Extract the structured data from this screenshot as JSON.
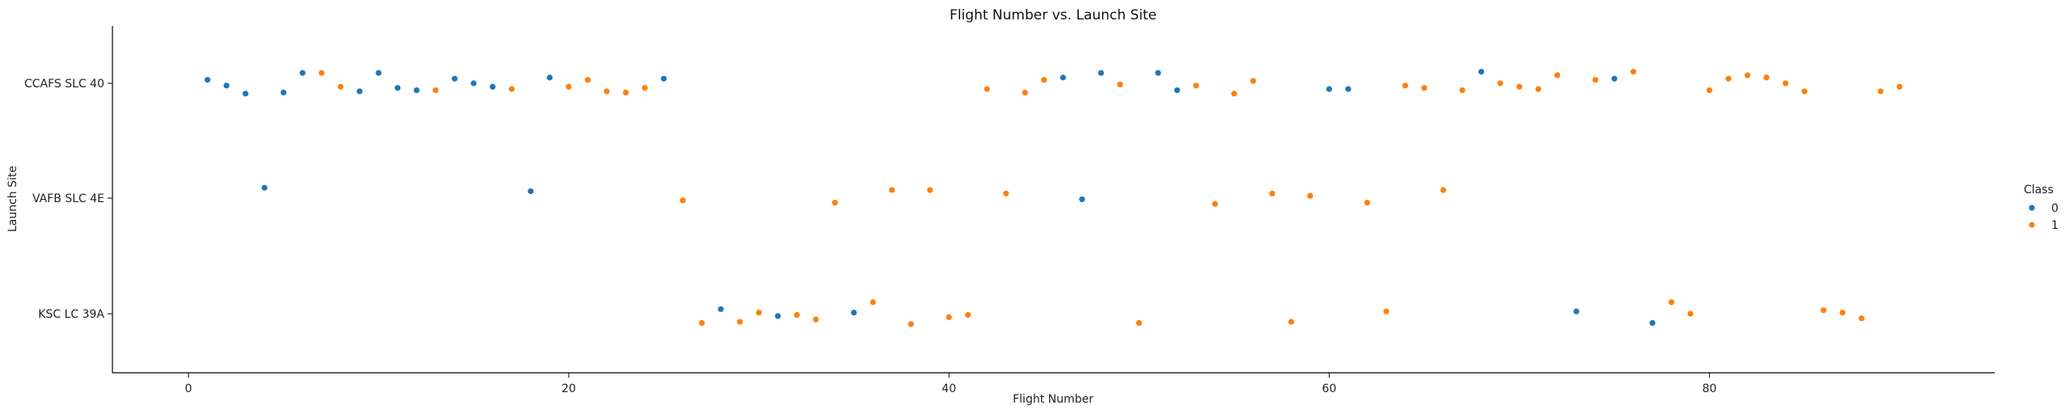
{
  "chart_data": {
    "type": "scatter",
    "title": "Flight Number vs. Launch Site",
    "xlabel": "Flight Number",
    "ylabel": "Launch Site",
    "xlim": [
      -4,
      95
    ],
    "x_ticks": [
      0,
      20,
      40,
      60,
      80
    ],
    "categories": [
      "CCAFS SLC 40",
      "VAFB SLC 4E",
      "KSC LC 39A"
    ],
    "grid": false,
    "legend": {
      "title": "Class",
      "placement": "right",
      "entries": [
        "0",
        "1"
      ]
    },
    "colors": {
      "0": "#1f77b4",
      "1": "#ff7f0e"
    },
    "series": [
      {
        "name": "0",
        "points": [
          {
            "x": 1,
            "site": "CCAFS SLC 40",
            "jitter": -0.03
          },
          {
            "x": 2,
            "site": "CCAFS SLC 40",
            "jitter": 0.02
          },
          {
            "x": 3,
            "site": "CCAFS SLC 40",
            "jitter": 0.09
          },
          {
            "x": 4,
            "site": "VAFB SLC 4E",
            "jitter": -0.09
          },
          {
            "x": 5,
            "site": "CCAFS SLC 40",
            "jitter": 0.08
          },
          {
            "x": 6,
            "site": "CCAFS SLC 40",
            "jitter": -0.09
          },
          {
            "x": 9,
            "site": "CCAFS SLC 40",
            "jitter": 0.07
          },
          {
            "x": 10,
            "site": "CCAFS SLC 40",
            "jitter": -0.09
          },
          {
            "x": 11,
            "site": "CCAFS SLC 40",
            "jitter": 0.04
          },
          {
            "x": 12,
            "site": "CCAFS SLC 40",
            "jitter": 0.06
          },
          {
            "x": 14,
            "site": "CCAFS SLC 40",
            "jitter": -0.04
          },
          {
            "x": 15,
            "site": "CCAFS SLC 40",
            "jitter": 0.0
          },
          {
            "x": 16,
            "site": "CCAFS SLC 40",
            "jitter": 0.03
          },
          {
            "x": 18,
            "site": "VAFB SLC 4E",
            "jitter": -0.06
          },
          {
            "x": 19,
            "site": "CCAFS SLC 40",
            "jitter": -0.05
          },
          {
            "x": 25,
            "site": "CCAFS SLC 40",
            "jitter": -0.04
          },
          {
            "x": 28,
            "site": "KSC LC 39A",
            "jitter": -0.04
          },
          {
            "x": 31,
            "site": "KSC LC 39A",
            "jitter": 0.02
          },
          {
            "x": 35,
            "site": "KSC LC 39A",
            "jitter": -0.01
          },
          {
            "x": 46,
            "site": "CCAFS SLC 40",
            "jitter": -0.05
          },
          {
            "x": 47,
            "site": "VAFB SLC 4E",
            "jitter": 0.01
          },
          {
            "x": 48,
            "site": "CCAFS SLC 40",
            "jitter": -0.09
          },
          {
            "x": 51,
            "site": "CCAFS SLC 40",
            "jitter": -0.09
          },
          {
            "x": 52,
            "site": "CCAFS SLC 40",
            "jitter": 0.06
          },
          {
            "x": 60,
            "site": "CCAFS SLC 40",
            "jitter": 0.05
          },
          {
            "x": 61,
            "site": "CCAFS SLC 40",
            "jitter": 0.05
          },
          {
            "x": 68,
            "site": "CCAFS SLC 40",
            "jitter": -0.1
          },
          {
            "x": 73,
            "site": "KSC LC 39A",
            "jitter": -0.02
          },
          {
            "x": 75,
            "site": "CCAFS SLC 40",
            "jitter": -0.04
          },
          {
            "x": 77,
            "site": "KSC LC 39A",
            "jitter": 0.08
          }
        ]
      },
      {
        "name": "1",
        "points": [
          {
            "x": 7,
            "site": "CCAFS SLC 40",
            "jitter": -0.09
          },
          {
            "x": 8,
            "site": "CCAFS SLC 40",
            "jitter": 0.03
          },
          {
            "x": 13,
            "site": "CCAFS SLC 40",
            "jitter": 0.06
          },
          {
            "x": 17,
            "site": "CCAFS SLC 40",
            "jitter": 0.05
          },
          {
            "x": 20,
            "site": "CCAFS SLC 40",
            "jitter": 0.03
          },
          {
            "x": 21,
            "site": "CCAFS SLC 40",
            "jitter": -0.03
          },
          {
            "x": 22,
            "site": "CCAFS SLC 40",
            "jitter": 0.07
          },
          {
            "x": 23,
            "site": "CCAFS SLC 40",
            "jitter": 0.08
          },
          {
            "x": 24,
            "site": "CCAFS SLC 40",
            "jitter": 0.04
          },
          {
            "x": 26,
            "site": "VAFB SLC 4E",
            "jitter": 0.02
          },
          {
            "x": 27,
            "site": "KSC LC 39A",
            "jitter": 0.08
          },
          {
            "x": 29,
            "site": "KSC LC 39A",
            "jitter": 0.07
          },
          {
            "x": 30,
            "site": "KSC LC 39A",
            "jitter": -0.01
          },
          {
            "x": 32,
            "site": "KSC LC 39A",
            "jitter": 0.01
          },
          {
            "x": 33,
            "site": "KSC LC 39A",
            "jitter": 0.05
          },
          {
            "x": 34,
            "site": "VAFB SLC 4E",
            "jitter": 0.04
          },
          {
            "x": 36,
            "site": "KSC LC 39A",
            "jitter": -0.1
          },
          {
            "x": 37,
            "site": "VAFB SLC 4E",
            "jitter": -0.07
          },
          {
            "x": 38,
            "site": "KSC LC 39A",
            "jitter": 0.09
          },
          {
            "x": 39,
            "site": "VAFB SLC 4E",
            "jitter": -0.07
          },
          {
            "x": 40,
            "site": "KSC LC 39A",
            "jitter": 0.03
          },
          {
            "x": 41,
            "site": "KSC LC 39A",
            "jitter": 0.01
          },
          {
            "x": 42,
            "site": "CCAFS SLC 40",
            "jitter": 0.05
          },
          {
            "x": 43,
            "site": "VAFB SLC 4E",
            "jitter": -0.04
          },
          {
            "x": 44,
            "site": "CCAFS SLC 40",
            "jitter": 0.08
          },
          {
            "x": 45,
            "site": "CCAFS SLC 40",
            "jitter": -0.03
          },
          {
            "x": 49,
            "site": "CCAFS SLC 40",
            "jitter": 0.01
          },
          {
            "x": 50,
            "site": "KSC LC 39A",
            "jitter": 0.08
          },
          {
            "x": 53,
            "site": "CCAFS SLC 40",
            "jitter": 0.02
          },
          {
            "x": 54,
            "site": "VAFB SLC 4E",
            "jitter": 0.05
          },
          {
            "x": 55,
            "site": "CCAFS SLC 40",
            "jitter": 0.09
          },
          {
            "x": 56,
            "site": "CCAFS SLC 40",
            "jitter": -0.02
          },
          {
            "x": 57,
            "site": "VAFB SLC 4E",
            "jitter": -0.04
          },
          {
            "x": 58,
            "site": "KSC LC 39A",
            "jitter": 0.07
          },
          {
            "x": 59,
            "site": "VAFB SLC 4E",
            "jitter": -0.02
          },
          {
            "x": 62,
            "site": "VAFB SLC 4E",
            "jitter": 0.04
          },
          {
            "x": 63,
            "site": "KSC LC 39A",
            "jitter": -0.02
          },
          {
            "x": 64,
            "site": "CCAFS SLC 40",
            "jitter": 0.02
          },
          {
            "x": 65,
            "site": "CCAFS SLC 40",
            "jitter": 0.04
          },
          {
            "x": 66,
            "site": "VAFB SLC 4E",
            "jitter": -0.07
          },
          {
            "x": 67,
            "site": "CCAFS SLC 40",
            "jitter": 0.06
          },
          {
            "x": 69,
            "site": "CCAFS SLC 40",
            "jitter": 0.0
          },
          {
            "x": 70,
            "site": "CCAFS SLC 40",
            "jitter": 0.03
          },
          {
            "x": 71,
            "site": "CCAFS SLC 40",
            "jitter": 0.05
          },
          {
            "x": 72,
            "site": "CCAFS SLC 40",
            "jitter": -0.07
          },
          {
            "x": 74,
            "site": "CCAFS SLC 40",
            "jitter": -0.03
          },
          {
            "x": 76,
            "site": "CCAFS SLC 40",
            "jitter": -0.1
          },
          {
            "x": 78,
            "site": "KSC LC 39A",
            "jitter": -0.1
          },
          {
            "x": 79,
            "site": "KSC LC 39A",
            "jitter": 0.0
          },
          {
            "x": 80,
            "site": "CCAFS SLC 40",
            "jitter": 0.06
          },
          {
            "x": 81,
            "site": "CCAFS SLC 40",
            "jitter": -0.04
          },
          {
            "x": 82,
            "site": "CCAFS SLC 40",
            "jitter": -0.07
          },
          {
            "x": 83,
            "site": "CCAFS SLC 40",
            "jitter": -0.05
          },
          {
            "x": 84,
            "site": "CCAFS SLC 40",
            "jitter": 0.0
          },
          {
            "x": 85,
            "site": "CCAFS SLC 40",
            "jitter": 0.07
          },
          {
            "x": 86,
            "site": "KSC LC 39A",
            "jitter": -0.03
          },
          {
            "x": 87,
            "site": "KSC LC 39A",
            "jitter": -0.01
          },
          {
            "x": 88,
            "site": "KSC LC 39A",
            "jitter": 0.04
          },
          {
            "x": 89,
            "site": "CCAFS SLC 40",
            "jitter": 0.07
          },
          {
            "x": 90,
            "site": "CCAFS SLC 40",
            "jitter": 0.03
          }
        ]
      }
    ]
  }
}
